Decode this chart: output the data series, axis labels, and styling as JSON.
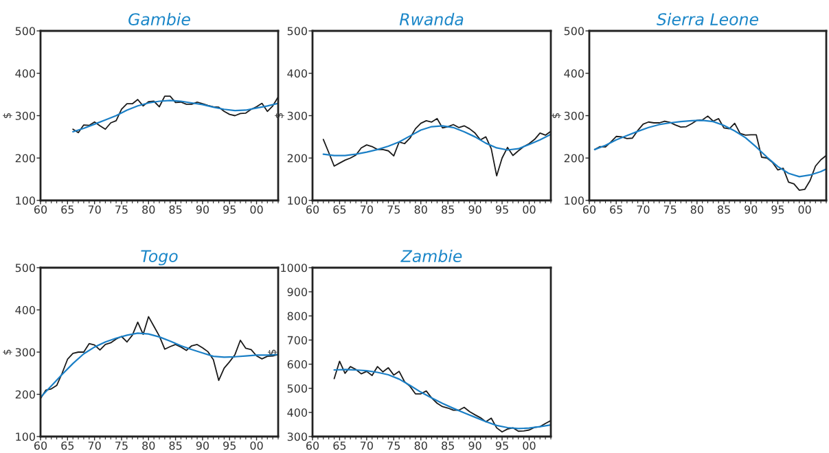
{
  "chart_data": [
    {
      "type": "line",
      "title": "Gambie",
      "ylabel": "$",
      "xlim": [
        1960,
        2004
      ],
      "ylim": [
        100,
        500
      ],
      "yticks": [
        100,
        200,
        300,
        400,
        500
      ],
      "grid": false,
      "legend": false,
      "marker": "none",
      "line_style": "solid",
      "xticks": [
        {
          "value": 1960,
          "label": "60"
        },
        {
          "value": 1961,
          "label": null
        },
        {
          "value": 1962,
          "label": null
        },
        {
          "value": 1963,
          "label": null
        },
        {
          "value": 1964,
          "label": null
        },
        {
          "value": 1965,
          "label": "65"
        },
        {
          "value": 1966,
          "label": null
        },
        {
          "value": 1967,
          "label": null
        },
        {
          "value": 1968,
          "label": null
        },
        {
          "value": 1969,
          "label": null
        },
        {
          "value": 1970,
          "label": "70"
        },
        {
          "value": 1971,
          "label": null
        },
        {
          "value": 1972,
          "label": null
        },
        {
          "value": 1973,
          "label": null
        },
        {
          "value": 1974,
          "label": null
        },
        {
          "value": 1975,
          "label": "75"
        },
        {
          "value": 1976,
          "label": null
        },
        {
          "value": 1977,
          "label": null
        },
        {
          "value": 1978,
          "label": null
        },
        {
          "value": 1979,
          "label": null
        },
        {
          "value": 1980,
          "label": "80"
        },
        {
          "value": 1981,
          "label": null
        },
        {
          "value": 1982,
          "label": null
        },
        {
          "value": 1983,
          "label": null
        },
        {
          "value": 1984,
          "label": null
        },
        {
          "value": 1985,
          "label": "85"
        },
        {
          "value": 1986,
          "label": null
        },
        {
          "value": 1987,
          "label": null
        },
        {
          "value": 1988,
          "label": null
        },
        {
          "value": 1989,
          "label": null
        },
        {
          "value": 1990,
          "label": "90"
        },
        {
          "value": 1991,
          "label": null
        },
        {
          "value": 1992,
          "label": null
        },
        {
          "value": 1993,
          "label": null
        },
        {
          "value": 1994,
          "label": null
        },
        {
          "value": 1995,
          "label": "95"
        },
        {
          "value": 1996,
          "label": null
        },
        {
          "value": 1997,
          "label": null
        },
        {
          "value": 1998,
          "label": null
        },
        {
          "value": 1999,
          "label": null
        },
        {
          "value": 2000,
          "label": "00"
        },
        {
          "value": 2001,
          "label": null
        },
        {
          "value": 2002,
          "label": null
        },
        {
          "value": 2003,
          "label": null
        },
        {
          "value": 2004,
          "label": null
        }
      ],
      "series": [
        {
          "color": "#1a1a1a",
          "x": [
            1966,
            1967,
            1968,
            1969,
            1970,
            1971,
            1972,
            1973,
            1974,
            1975,
            1976,
            1977,
            1978,
            1979,
            1980,
            1981,
            1982,
            1983,
            1984,
            1985,
            1986,
            1987,
            1988,
            1989,
            1990,
            1991,
            1992,
            1993,
            1994,
            1995,
            1996,
            1997,
            1998,
            1999,
            2000,
            2001,
            2002,
            2003,
            2004
          ],
          "values": [
            268,
            260,
            278,
            277,
            285,
            276,
            268,
            283,
            288,
            315,
            328,
            328,
            338,
            323,
            333,
            334,
            321,
            346,
            346,
            331,
            332,
            327,
            327,
            332,
            328,
            324,
            321,
            320,
            310,
            303,
            300,
            305,
            306,
            315,
            321,
            329,
            310,
            323,
            344
          ]
        },
        {
          "color": "#1a7fc6",
          "x": [
            1966,
            1968,
            1970,
            1972,
            1974,
            1976,
            1978,
            1980,
            1982,
            1984,
            1986,
            1988,
            1990,
            1992,
            1994,
            1996,
            1998,
            2000,
            2002,
            2004
          ],
          "values": [
            262,
            270,
            280,
            290,
            300,
            313,
            323,
            330,
            334,
            336,
            334,
            330,
            326,
            320,
            315,
            312,
            313,
            318,
            323,
            329
          ]
        }
      ]
    },
    {
      "type": "line",
      "title": "Rwanda",
      "ylabel": "$",
      "xlim": [
        1960,
        2004
      ],
      "ylim": [
        100,
        500
      ],
      "yticks": [
        100,
        200,
        300,
        400,
        500
      ],
      "grid": false,
      "legend": false,
      "marker": "none",
      "line_style": "solid",
      "xticks": [
        {
          "value": 1960,
          "label": "60"
        },
        {
          "value": 1961,
          "label": null
        },
        {
          "value": 1962,
          "label": null
        },
        {
          "value": 1963,
          "label": null
        },
        {
          "value": 1964,
          "label": null
        },
        {
          "value": 1965,
          "label": "65"
        },
        {
          "value": 1966,
          "label": null
        },
        {
          "value": 1967,
          "label": null
        },
        {
          "value": 1968,
          "label": null
        },
        {
          "value": 1969,
          "label": null
        },
        {
          "value": 1970,
          "label": "70"
        },
        {
          "value": 1971,
          "label": null
        },
        {
          "value": 1972,
          "label": null
        },
        {
          "value": 1973,
          "label": null
        },
        {
          "value": 1974,
          "label": null
        },
        {
          "value": 1975,
          "label": "75"
        },
        {
          "value": 1976,
          "label": null
        },
        {
          "value": 1977,
          "label": null
        },
        {
          "value": 1978,
          "label": null
        },
        {
          "value": 1979,
          "label": null
        },
        {
          "value": 1980,
          "label": "80"
        },
        {
          "value": 1981,
          "label": null
        },
        {
          "value": 1982,
          "label": null
        },
        {
          "value": 1983,
          "label": null
        },
        {
          "value": 1984,
          "label": null
        },
        {
          "value": 1985,
          "label": "85"
        },
        {
          "value": 1986,
          "label": null
        },
        {
          "value": 1987,
          "label": null
        },
        {
          "value": 1988,
          "label": null
        },
        {
          "value": 1989,
          "label": null
        },
        {
          "value": 1990,
          "label": "90"
        },
        {
          "value": 1991,
          "label": null
        },
        {
          "value": 1992,
          "label": null
        },
        {
          "value": 1993,
          "label": null
        },
        {
          "value": 1994,
          "label": null
        },
        {
          "value": 1995,
          "label": "95"
        },
        {
          "value": 1996,
          "label": null
        },
        {
          "value": 1997,
          "label": null
        },
        {
          "value": 1998,
          "label": null
        },
        {
          "value": 1999,
          "label": null
        },
        {
          "value": 2000,
          "label": "00"
        },
        {
          "value": 2001,
          "label": null
        },
        {
          "value": 2002,
          "label": null
        },
        {
          "value": 2003,
          "label": null
        },
        {
          "value": 2004,
          "label": null
        }
      ],
      "series": [
        {
          "color": "#1a1a1a",
          "x": [
            1962,
            1963,
            1964,
            1965,
            1966,
            1967,
            1968,
            1969,
            1970,
            1971,
            1972,
            1973,
            1974,
            1975,
            1976,
            1977,
            1978,
            1979,
            1980,
            1981,
            1982,
            1983,
            1984,
            1985,
            1986,
            1987,
            1988,
            1989,
            1990,
            1991,
            1992,
            1993,
            1994,
            1995,
            1996,
            1997,
            1998,
            1999,
            2000,
            2001,
            2002,
            2003,
            2004
          ],
          "values": [
            244,
            213,
            181,
            188,
            195,
            200,
            207,
            224,
            231,
            227,
            220,
            220,
            217,
            205,
            238,
            234,
            247,
            269,
            282,
            288,
            285,
            293,
            271,
            274,
            279,
            272,
            276,
            269,
            259,
            243,
            250,
            222,
            158,
            200,
            225,
            206,
            217,
            227,
            234,
            244,
            259,
            254,
            263
          ]
        },
        {
          "color": "#1a7fc6",
          "x": [
            1962,
            1964,
            1966,
            1968,
            1970,
            1972,
            1974,
            1976,
            1978,
            1980,
            1982,
            1984,
            1986,
            1988,
            1990,
            1992,
            1994,
            1996,
            1998,
            2000,
            2002,
            2004
          ],
          "values": [
            209,
            206,
            206,
            209,
            214,
            220,
            228,
            238,
            252,
            266,
            274,
            276,
            272,
            262,
            250,
            235,
            224,
            219,
            222,
            232,
            243,
            256
          ]
        }
      ]
    },
    {
      "type": "line",
      "title": "Sierra Leone",
      "ylabel": "$",
      "xlim": [
        1960,
        2004
      ],
      "ylim": [
        100,
        500
      ],
      "yticks": [
        100,
        200,
        300,
        400,
        500
      ],
      "grid": false,
      "legend": false,
      "marker": "none",
      "line_style": "solid",
      "xticks": [
        {
          "value": 1960,
          "label": "60"
        },
        {
          "value": 1961,
          "label": null
        },
        {
          "value": 1962,
          "label": null
        },
        {
          "value": 1963,
          "label": null
        },
        {
          "value": 1964,
          "label": null
        },
        {
          "value": 1965,
          "label": "65"
        },
        {
          "value": 1966,
          "label": null
        },
        {
          "value": 1967,
          "label": null
        },
        {
          "value": 1968,
          "label": null
        },
        {
          "value": 1969,
          "label": null
        },
        {
          "value": 1970,
          "label": "70"
        },
        {
          "value": 1971,
          "label": null
        },
        {
          "value": 1972,
          "label": null
        },
        {
          "value": 1973,
          "label": null
        },
        {
          "value": 1974,
          "label": null
        },
        {
          "value": 1975,
          "label": "75"
        },
        {
          "value": 1976,
          "label": null
        },
        {
          "value": 1977,
          "label": null
        },
        {
          "value": 1978,
          "label": null
        },
        {
          "value": 1979,
          "label": null
        },
        {
          "value": 1980,
          "label": "80"
        },
        {
          "value": 1981,
          "label": null
        },
        {
          "value": 1982,
          "label": null
        },
        {
          "value": 1983,
          "label": null
        },
        {
          "value": 1984,
          "label": null
        },
        {
          "value": 1985,
          "label": "85"
        },
        {
          "value": 1986,
          "label": null
        },
        {
          "value": 1987,
          "label": null
        },
        {
          "value": 1988,
          "label": null
        },
        {
          "value": 1989,
          "label": null
        },
        {
          "value": 1990,
          "label": "90"
        },
        {
          "value": 1991,
          "label": null
        },
        {
          "value": 1992,
          "label": null
        },
        {
          "value": 1993,
          "label": null
        },
        {
          "value": 1994,
          "label": null
        },
        {
          "value": 1995,
          "label": "95"
        },
        {
          "value": 1996,
          "label": null
        },
        {
          "value": 1997,
          "label": null
        },
        {
          "value": 1998,
          "label": null
        },
        {
          "value": 1999,
          "label": null
        },
        {
          "value": 2000,
          "label": "00"
        },
        {
          "value": 2001,
          "label": null
        },
        {
          "value": 2002,
          "label": null
        },
        {
          "value": 2003,
          "label": null
        },
        {
          "value": 2004,
          "label": null
        }
      ],
      "series": [
        {
          "color": "#1a1a1a",
          "x": [
            1961,
            1962,
            1963,
            1964,
            1965,
            1966,
            1967,
            1968,
            1969,
            1970,
            1971,
            1972,
            1973,
            1974,
            1975,
            1976,
            1977,
            1978,
            1979,
            1980,
            1981,
            1982,
            1983,
            1984,
            1985,
            1986,
            1987,
            1988,
            1989,
            1990,
            1991,
            1992,
            1993,
            1994,
            1995,
            1996,
            1997,
            1998,
            1999,
            2000,
            2001,
            2002,
            2003,
            2004
          ],
          "values": [
            220,
            227,
            226,
            238,
            251,
            250,
            246,
            247,
            265,
            280,
            285,
            283,
            283,
            287,
            284,
            278,
            273,
            274,
            281,
            289,
            290,
            299,
            287,
            293,
            271,
            269,
            282,
            258,
            254,
            255,
            255,
            202,
            200,
            190,
            172,
            176,
            143,
            139,
            124,
            126,
            147,
            181,
            196,
            206
          ]
        },
        {
          "color": "#1a7fc6",
          "x": [
            1961,
            1963,
            1965,
            1967,
            1969,
            1971,
            1973,
            1975,
            1977,
            1979,
            1981,
            1983,
            1985,
            1987,
            1989,
            1991,
            1993,
            1995,
            1997,
            1999,
            2001,
            2003,
            2004
          ],
          "values": [
            220,
            230,
            243,
            253,
            263,
            272,
            279,
            283,
            286,
            288,
            289,
            286,
            277,
            264,
            248,
            226,
            202,
            180,
            164,
            156,
            160,
            168,
            174
          ]
        }
      ]
    },
    {
      "type": "line",
      "title": "Togo",
      "ylabel": "$",
      "xlim": [
        1960,
        2004
      ],
      "ylim": [
        100,
        500
      ],
      "yticks": [
        100,
        200,
        300,
        400,
        500
      ],
      "grid": false,
      "legend": false,
      "marker": "none",
      "line_style": "solid",
      "xticks": [
        {
          "value": 1960,
          "label": "60"
        },
        {
          "value": 1961,
          "label": null
        },
        {
          "value": 1962,
          "label": null
        },
        {
          "value": 1963,
          "label": null
        },
        {
          "value": 1964,
          "label": null
        },
        {
          "value": 1965,
          "label": "65"
        },
        {
          "value": 1966,
          "label": null
        },
        {
          "value": 1967,
          "label": null
        },
        {
          "value": 1968,
          "label": null
        },
        {
          "value": 1969,
          "label": null
        },
        {
          "value": 1970,
          "label": "70"
        },
        {
          "value": 1971,
          "label": null
        },
        {
          "value": 1972,
          "label": null
        },
        {
          "value": 1973,
          "label": null
        },
        {
          "value": 1974,
          "label": null
        },
        {
          "value": 1975,
          "label": "75"
        },
        {
          "value": 1976,
          "label": null
        },
        {
          "value": 1977,
          "label": null
        },
        {
          "value": 1978,
          "label": null
        },
        {
          "value": 1979,
          "label": null
        },
        {
          "value": 1980,
          "label": "80"
        },
        {
          "value": 1981,
          "label": null
        },
        {
          "value": 1982,
          "label": null
        },
        {
          "value": 1983,
          "label": null
        },
        {
          "value": 1984,
          "label": null
        },
        {
          "value": 1985,
          "label": "85"
        },
        {
          "value": 1986,
          "label": null
        },
        {
          "value": 1987,
          "label": null
        },
        {
          "value": 1988,
          "label": null
        },
        {
          "value": 1989,
          "label": null
        },
        {
          "value": 1990,
          "label": "90"
        },
        {
          "value": 1991,
          "label": null
        },
        {
          "value": 1992,
          "label": null
        },
        {
          "value": 1993,
          "label": null
        },
        {
          "value": 1994,
          "label": null
        },
        {
          "value": 1995,
          "label": "95"
        },
        {
          "value": 1996,
          "label": null
        },
        {
          "value": 1997,
          "label": null
        },
        {
          "value": 1998,
          "label": null
        },
        {
          "value": 1999,
          "label": null
        },
        {
          "value": 2000,
          "label": "00"
        },
        {
          "value": 2001,
          "label": null
        },
        {
          "value": 2002,
          "label": null
        },
        {
          "value": 2003,
          "label": null
        },
        {
          "value": 2004,
          "label": null
        }
      ],
      "series": [
        {
          "color": "#1a1a1a",
          "x": [
            1960,
            1961,
            1962,
            1963,
            1964,
            1965,
            1966,
            1967,
            1968,
            1969,
            1970,
            1971,
            1972,
            1973,
            1974,
            1975,
            1976,
            1977,
            1978,
            1979,
            1980,
            1981,
            1982,
            1983,
            1984,
            1985,
            1986,
            1987,
            1988,
            1989,
            1990,
            1991,
            1992,
            1993,
            1994,
            1995,
            1996,
            1997,
            1998,
            1999,
            2000,
            2001,
            2002,
            2003,
            2004
          ],
          "values": [
            190,
            210,
            213,
            221,
            250,
            283,
            297,
            300,
            300,
            320,
            317,
            305,
            318,
            322,
            331,
            337,
            324,
            340,
            371,
            342,
            384,
            361,
            338,
            307,
            313,
            318,
            312,
            304,
            315,
            318,
            310,
            301,
            282,
            233,
            262,
            277,
            294,
            328,
            309,
            306,
            291,
            284,
            290,
            291,
            294
          ]
        },
        {
          "color": "#1a7fc6",
          "x": [
            1960,
            1962,
            1964,
            1966,
            1968,
            1970,
            1972,
            1974,
            1976,
            1978,
            1980,
            1982,
            1984,
            1986,
            1988,
            1990,
            1992,
            1994,
            1996,
            1998,
            2000,
            2002,
            2004
          ],
          "values": [
            193,
            220,
            247,
            273,
            296,
            312,
            324,
            333,
            340,
            345,
            343,
            336,
            326,
            315,
            306,
            298,
            290,
            288,
            289,
            291,
            293,
            293,
            294
          ]
        }
      ]
    },
    {
      "type": "line",
      "title": "Zambie",
      "ylabel": "$",
      "xlim": [
        1960,
        2004
      ],
      "ylim": [
        300,
        1000
      ],
      "yticks": [
        300,
        400,
        500,
        600,
        700,
        800,
        900,
        1000
      ],
      "grid": false,
      "legend": false,
      "marker": "none",
      "line_style": "solid",
      "xticks": [
        {
          "value": 1960,
          "label": "60"
        },
        {
          "value": 1961,
          "label": null
        },
        {
          "value": 1962,
          "label": null
        },
        {
          "value": 1963,
          "label": null
        },
        {
          "value": 1964,
          "label": null
        },
        {
          "value": 1965,
          "label": "65"
        },
        {
          "value": 1966,
          "label": null
        },
        {
          "value": 1967,
          "label": null
        },
        {
          "value": 1968,
          "label": null
        },
        {
          "value": 1969,
          "label": null
        },
        {
          "value": 1970,
          "label": "70"
        },
        {
          "value": 1971,
          "label": null
        },
        {
          "value": 1972,
          "label": null
        },
        {
          "value": 1973,
          "label": null
        },
        {
          "value": 1974,
          "label": null
        },
        {
          "value": 1975,
          "label": "75"
        },
        {
          "value": 1976,
          "label": null
        },
        {
          "value": 1977,
          "label": null
        },
        {
          "value": 1978,
          "label": null
        },
        {
          "value": 1979,
          "label": null
        },
        {
          "value": 1980,
          "label": "80"
        },
        {
          "value": 1981,
          "label": null
        },
        {
          "value": 1982,
          "label": null
        },
        {
          "value": 1983,
          "label": null
        },
        {
          "value": 1984,
          "label": null
        },
        {
          "value": 1985,
          "label": "85"
        },
        {
          "value": 1986,
          "label": null
        },
        {
          "value": 1987,
          "label": null
        },
        {
          "value": 1988,
          "label": null
        },
        {
          "value": 1989,
          "label": null
        },
        {
          "value": 1990,
          "label": "90"
        },
        {
          "value": 1991,
          "label": null
        },
        {
          "value": 1992,
          "label": null
        },
        {
          "value": 1993,
          "label": null
        },
        {
          "value": 1994,
          "label": null
        },
        {
          "value": 1995,
          "label": "95"
        },
        {
          "value": 1996,
          "label": null
        },
        {
          "value": 1997,
          "label": null
        },
        {
          "value": 1998,
          "label": null
        },
        {
          "value": 1999,
          "label": null
        },
        {
          "value": 2000,
          "label": "00"
        },
        {
          "value": 2001,
          "label": null
        },
        {
          "value": 2002,
          "label": null
        },
        {
          "value": 2003,
          "label": null
        },
        {
          "value": 2004,
          "label": null
        }
      ],
      "series": [
        {
          "color": "#1a1a1a",
          "x": [
            1964,
            1965,
            1966,
            1967,
            1968,
            1969,
            1970,
            1971,
            1972,
            1973,
            1974,
            1975,
            1976,
            1977,
            1978,
            1979,
            1980,
            1981,
            1982,
            1983,
            1984,
            1985,
            1986,
            1987,
            1988,
            1989,
            1990,
            1991,
            1992,
            1993,
            1994,
            1995,
            1996,
            1997,
            1998,
            1999,
            2000,
            2001,
            2002,
            2003,
            2004
          ],
          "values": [
            540,
            612,
            562,
            590,
            578,
            560,
            570,
            553,
            590,
            568,
            585,
            555,
            570,
            527,
            508,
            477,
            477,
            489,
            460,
            438,
            424,
            418,
            409,
            409,
            421,
            403,
            390,
            378,
            361,
            376,
            336,
            319,
            331,
            336,
            322,
            323,
            327,
            338,
            341,
            354,
            366
          ]
        },
        {
          "color": "#1a7fc6",
          "x": [
            1964,
            1966,
            1968,
            1970,
            1972,
            1974,
            1976,
            1978,
            1980,
            1982,
            1984,
            1986,
            1988,
            1990,
            1992,
            1994,
            1996,
            1998,
            2000,
            2002,
            2004
          ],
          "values": [
            576,
            578,
            576,
            573,
            566,
            556,
            538,
            512,
            484,
            460,
            437,
            417,
            398,
            380,
            362,
            346,
            337,
            333,
            335,
            341,
            348
          ]
        }
      ]
    }
  ]
}
